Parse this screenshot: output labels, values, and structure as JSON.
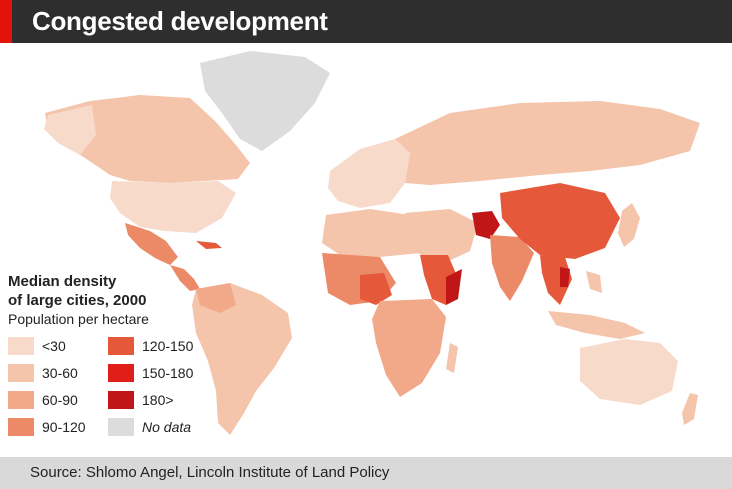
{
  "header": {
    "title": "Congested development"
  },
  "legend": {
    "title_line1": "Median density",
    "title_line2": "of large cities, 2000",
    "subtitle": "Population per hectare",
    "items": [
      {
        "label": "<30",
        "color": "#f8dacb"
      },
      {
        "label": "30-60",
        "color": "#f4c4ab"
      },
      {
        "label": "60-90",
        "color": "#f1a98a"
      },
      {
        "label": "90-120",
        "color": "#ec8a67"
      },
      {
        "label": "120-150",
        "color": "#e5593a"
      },
      {
        "label": "150-180",
        "color": "#e01f1a"
      },
      {
        "label": "180>",
        "color": "#c01617"
      },
      {
        "label": "No data",
        "color": "#dcdcdc"
      }
    ]
  },
  "footer": {
    "source": "Source: Shlomo Angel, Lincoln Institute of Land Policy"
  },
  "colors": {
    "header_bg": "#2e2e2e",
    "accent": "#e3120b",
    "footer_bg": "#d9d9d9"
  }
}
